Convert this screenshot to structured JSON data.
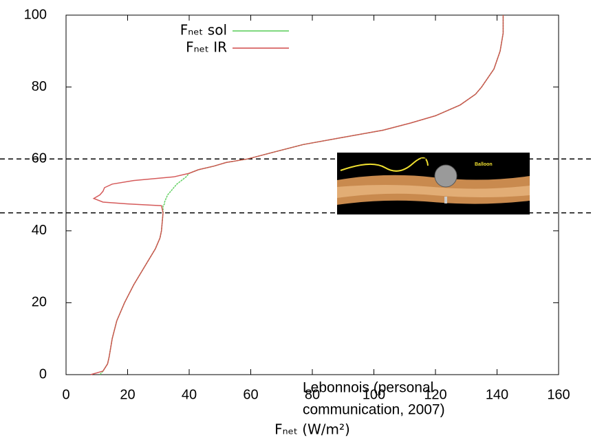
{
  "chart_data": {
    "type": "line",
    "xlabel": "Fₙₑₜ (W/m²)",
    "annotation": [
      "Lebonnois (personal",
      "communication, 2007)"
    ],
    "inset_label": "Balloon",
    "xlim": [
      0,
      160
    ],
    "xticks": [
      0,
      20,
      40,
      60,
      80,
      100,
      120,
      140,
      160
    ],
    "ylim": [
      0,
      100
    ],
    "yticks": [
      0,
      20,
      40,
      60,
      80,
      100
    ],
    "hlines": [
      60,
      45
    ],
    "legend": "top-left",
    "y": [
      0,
      1,
      3,
      5,
      10,
      15,
      20,
      25,
      30,
      35,
      38,
      40,
      45,
      47,
      47.5,
      48,
      49,
      50,
      51,
      52,
      53,
      54,
      55,
      56,
      57,
      58,
      59,
      60,
      62,
      64,
      66,
      68,
      70,
      72,
      75,
      78,
      80,
      85,
      90,
      95,
      100
    ],
    "series": [
      {
        "name": "Fₙₑₜ sol",
        "color": "#55cc55",
        "x": [
          11,
          12,
          13.5,
          14,
          15,
          16.5,
          19,
          22,
          25.5,
          29,
          30.5,
          31,
          31.5,
          31.5,
          32,
          32,
          32.5,
          33,
          34,
          35,
          36,
          37.5,
          39,
          40,
          43,
          48,
          52,
          59,
          68,
          77,
          90,
          103,
          112,
          120,
          128,
          133,
          135,
          139,
          141,
          142,
          142
        ]
      },
      {
        "name": "Fₙₑₜ IR",
        "color": "#d04848",
        "x": [
          8,
          12,
          13.5,
          14,
          15,
          16.5,
          19,
          22,
          25.5,
          29,
          30.5,
          31,
          31.5,
          31,
          20,
          12,
          9,
          11,
          12,
          12.5,
          15,
          22,
          35,
          40,
          43,
          48,
          52,
          59,
          68,
          77,
          90,
          103,
          112,
          120,
          128,
          133,
          135,
          139,
          141,
          142,
          142
        ]
      }
    ]
  }
}
